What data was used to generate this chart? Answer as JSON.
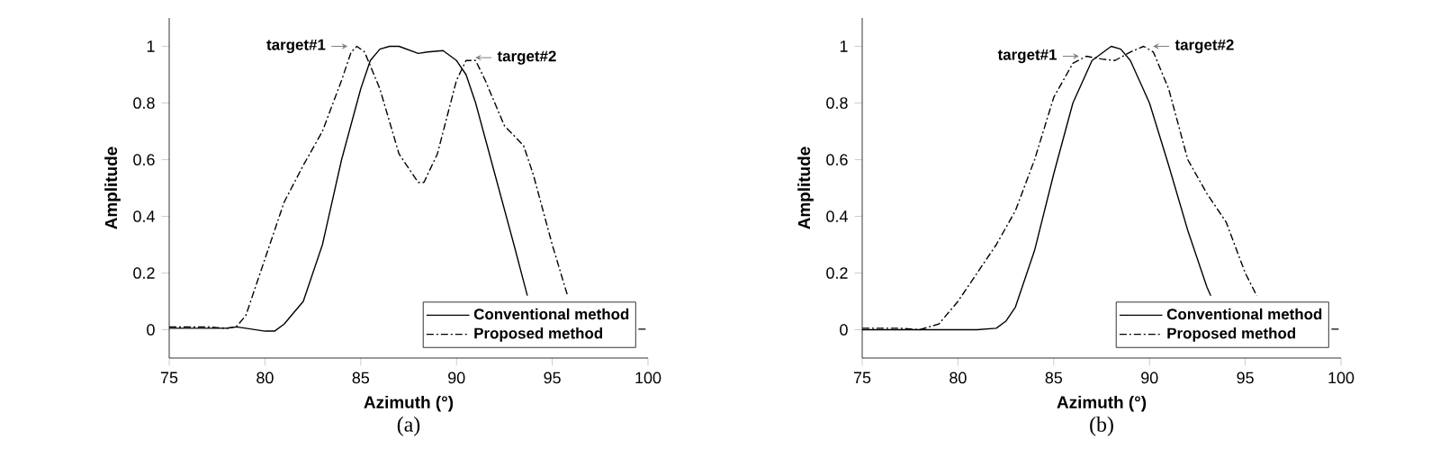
{
  "chart_data": [
    {
      "type": "line",
      "xlabel": "Azimuth (°)",
      "ylabel": "Amplitude",
      "xlim": [
        75,
        100
      ],
      "ylim": [
        -0.1,
        1.1
      ],
      "xticks": [
        75,
        80,
        85,
        90,
        95,
        100
      ],
      "yticks": [
        {
          "value": 0,
          "label": "0"
        },
        {
          "value": 0.2,
          "label": "0.2"
        },
        {
          "value": 0.4,
          "label": "0.4"
        },
        {
          "value": 0.6,
          "label": "0.6"
        },
        {
          "value": 0.8,
          "label": "0.8"
        },
        {
          "value": 1,
          "label": "1"
        }
      ],
      "legend": "bottom right",
      "grid": false,
      "series": [
        {
          "name": "Conventional method",
          "color": "#000000",
          "line_style": "solid",
          "x": [
            75,
            76,
            77,
            78,
            78.5,
            79,
            80,
            80.5,
            81,
            82,
            83,
            84,
            85,
            85.5,
            86,
            86.5,
            87,
            88,
            88.5,
            89.3,
            90,
            90.5,
            91,
            92,
            93,
            93.7
          ],
          "values": [
            0.005,
            0.005,
            0.005,
            0.005,
            0.01,
            0.005,
            -0.005,
            -0.005,
            0.02,
            0.1,
            0.3,
            0.6,
            0.85,
            0.95,
            0.99,
            1.0,
            1.0,
            0.975,
            0.98,
            0.985,
            0.95,
            0.9,
            0.8,
            0.55,
            0.3,
            0.12
          ]
        },
        {
          "name": "Proposed method",
          "color": "#000000",
          "line_style": "dashdot",
          "x": [
            75,
            76,
            77,
            78,
            78.5,
            79,
            80,
            81,
            82,
            83,
            84,
            84.5,
            84.8,
            85.2,
            86,
            87,
            88,
            88.3,
            89,
            90,
            90.5,
            91,
            91.5,
            92.5,
            93.5,
            94,
            95,
            95.8,
            97,
            99.5,
            100
          ],
          "values": [
            0.01,
            0.01,
            0.01,
            0.005,
            0.01,
            0.05,
            0.25,
            0.45,
            0.58,
            0.7,
            0.88,
            0.98,
            1.0,
            0.98,
            0.85,
            0.62,
            0.52,
            0.52,
            0.62,
            0.88,
            0.95,
            0.95,
            0.88,
            0.72,
            0.65,
            0.55,
            0.3,
            0.12,
            null,
            0.002,
            0.002
          ]
        }
      ],
      "annotations": [
        {
          "text": "target#1",
          "x": 84.6,
          "y": 1.0
        },
        {
          "text": "target#2",
          "x": 90.7,
          "y": 0.96
        },
        "(a)"
      ]
    },
    {
      "type": "line",
      "xlabel": "Azimuth (°)",
      "ylabel": "Amplitude",
      "xlim": [
        75,
        100
      ],
      "ylim": [
        -0.1,
        1.1
      ],
      "xticks": [
        75,
        80,
        85,
        90,
        95,
        100
      ],
      "yticks": [
        {
          "value": 0,
          "label": "0"
        },
        {
          "value": 0.2,
          "label": "0.2"
        },
        {
          "value": 0.4,
          "label": "0.4"
        },
        {
          "value": 0.6,
          "label": "0.6"
        },
        {
          "value": 0.8,
          "label": "0.8"
        },
        {
          "value": 1,
          "label": "1"
        }
      ],
      "legend": "bottom right",
      "grid": false,
      "series": [
        {
          "name": "Conventional method",
          "color": "#000000",
          "line_style": "solid",
          "x": [
            75,
            77,
            79,
            81,
            82,
            82.5,
            83,
            84,
            85,
            86,
            87,
            88,
            88.5,
            89,
            90,
            91,
            92,
            93,
            93.2
          ],
          "values": [
            0,
            0,
            0,
            0,
            0.005,
            0.03,
            0.08,
            0.28,
            0.55,
            0.8,
            0.95,
            1.0,
            0.99,
            0.95,
            0.8,
            0.58,
            0.35,
            0.15,
            0.12
          ]
        },
        {
          "name": "Proposed method",
          "color": "#000000",
          "line_style": "dashdot",
          "x": [
            75,
            77,
            78,
            79,
            80,
            81,
            82,
            83,
            84,
            85,
            86,
            86.7,
            87.5,
            88.2,
            89,
            89.7,
            90.2,
            91,
            92,
            93,
            94,
            95,
            95.6,
            97,
            99.5,
            100
          ],
          "values": [
            0.005,
            0.005,
            0,
            0.02,
            0.1,
            0.2,
            0.3,
            0.42,
            0.6,
            0.82,
            0.94,
            0.965,
            0.955,
            0.95,
            0.98,
            1.0,
            0.98,
            0.85,
            0.6,
            0.48,
            0.38,
            0.2,
            0.12,
            null,
            0.002,
            0.002
          ]
        }
      ],
      "annotations": [
        {
          "text": "target#1",
          "x": 86.6,
          "y": 0.965
        },
        {
          "text": "target#2",
          "x": 89.9,
          "y": 1.0
        },
        "(b)"
      ]
    }
  ]
}
